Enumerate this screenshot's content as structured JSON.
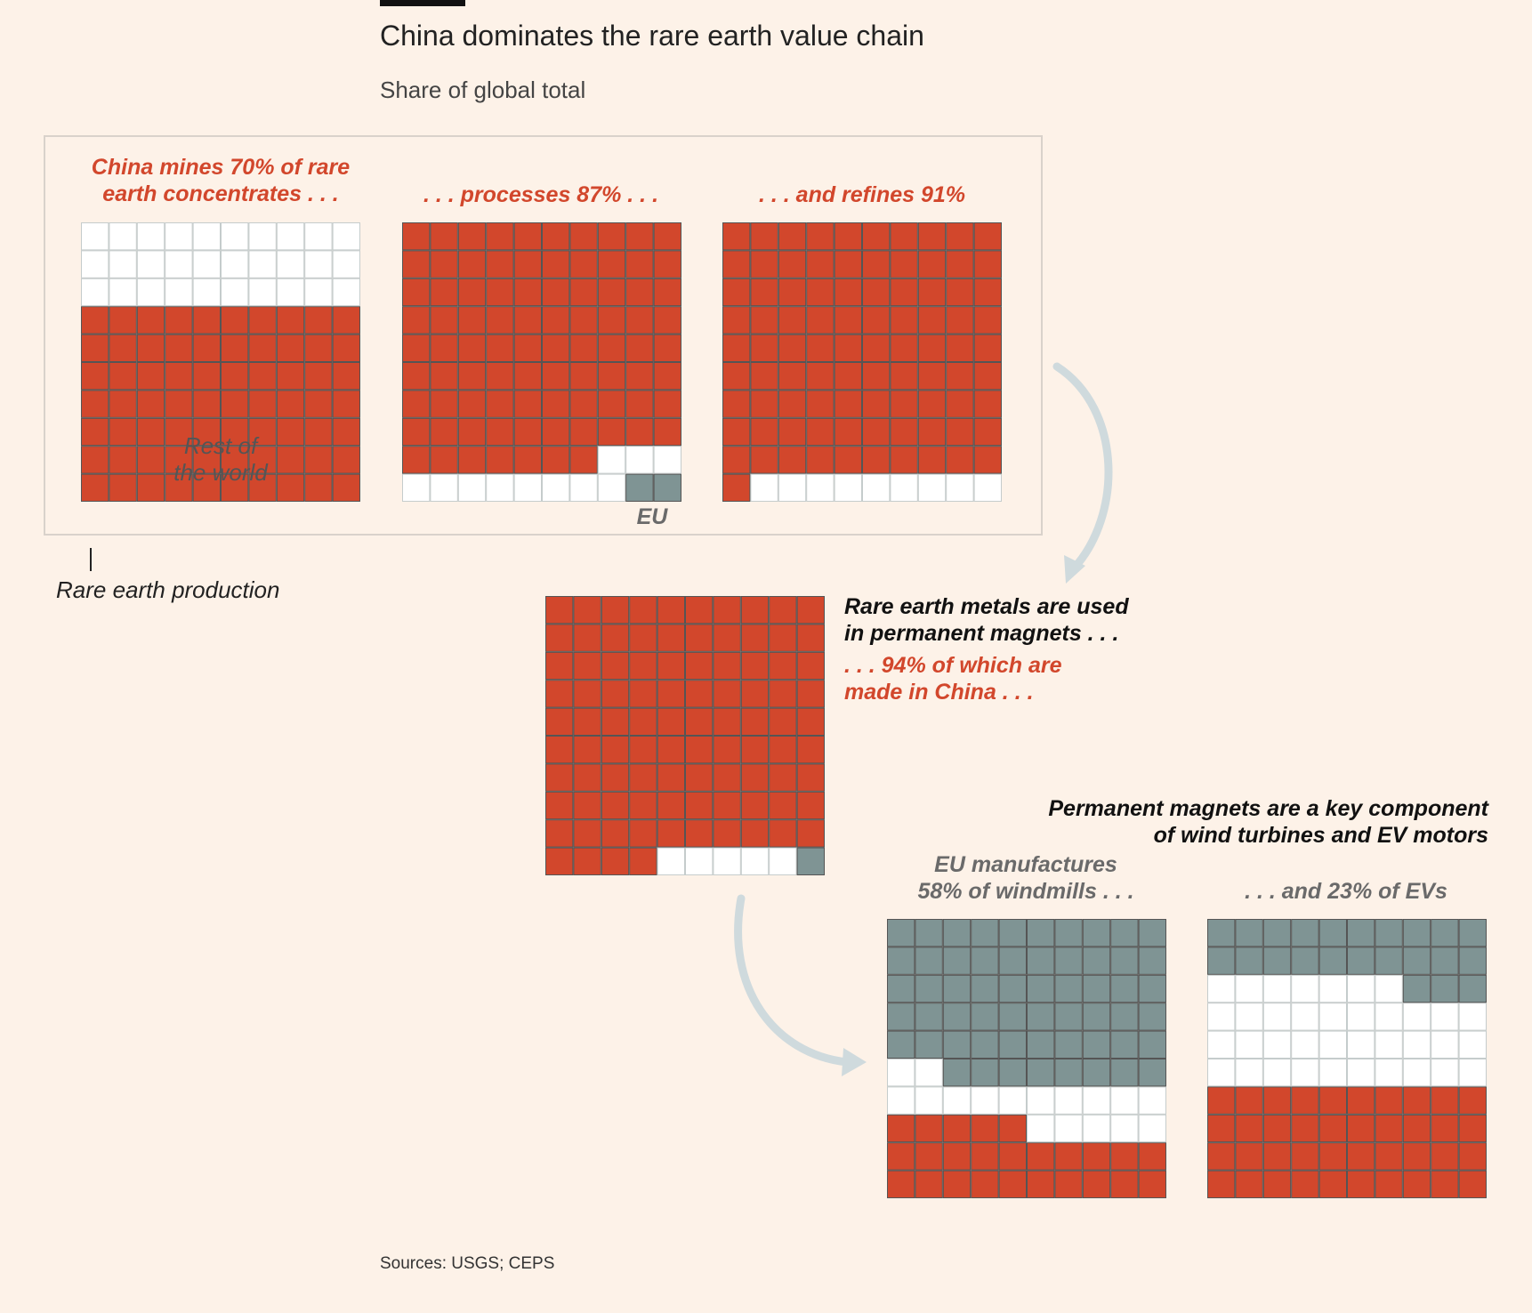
{
  "header": {
    "title": "China dominates the rare earth value chain",
    "subtitle": "Share of global total"
  },
  "annotations": {
    "mines": "China mines 70% of rare\nearth concentrates . . .",
    "processes": ". . . processes 87% . . .",
    "refines": ". . . and refines 91%",
    "rest_of_world": "Rest of\nthe world",
    "eu": "EU",
    "production": "Rare earth production",
    "magnets_use": "Rare earth metals are used\nin permanent magnets . . .",
    "magnets_china": ". . . 94% of which are\nmade in China . . .",
    "key_component": "Permanent magnets are a key component\nof wind turbines and EV motors",
    "windmills": "EU manufactures\n58% of windmills . . .",
    "evs": ". . . and 23% of EVs"
  },
  "footer": {
    "sources": "Sources: USGS; CEPS"
  },
  "colors": {
    "china": "#d2472c",
    "eu": "#7f9494",
    "rest": "#ffffff",
    "gridline": "#555555",
    "arrow": "#cfdadd"
  },
  "chart_data": [
    {
      "type": "waffle",
      "name": "Mining",
      "china": 70,
      "eu": 0,
      "rest": 30
    },
    {
      "type": "waffle",
      "name": "Processing",
      "china": 87,
      "eu": 2,
      "rest": 11
    },
    {
      "type": "waffle",
      "name": "Refining",
      "china": 91,
      "eu": 0,
      "rest": 9
    },
    {
      "type": "waffle",
      "name": "Permanent magnets",
      "china": 94,
      "eu": 1,
      "rest": 5
    },
    {
      "type": "waffle",
      "name": "Windmills",
      "eu": 58,
      "rest": 17,
      "china": 25
    },
    {
      "type": "waffle",
      "name": "EVs",
      "eu": 23,
      "rest": 37,
      "china": 40
    }
  ]
}
